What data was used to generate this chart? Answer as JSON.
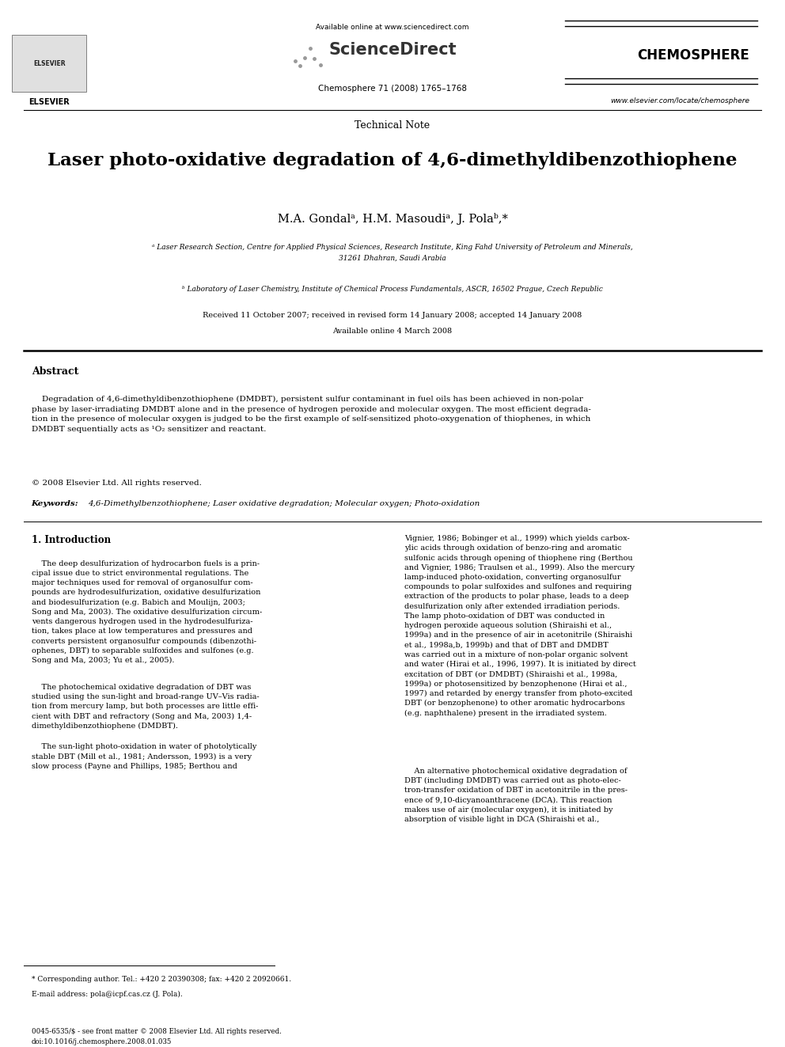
{
  "page_width": 9.92,
  "page_height": 13.23,
  "background": "#ffffff",
  "available_online": "Available online at www.sciencedirect.com",
  "sciencedirect": "ScienceDirect",
  "journal_name": "CHEMOSPHERE",
  "journal_info": "Chemosphere 71 (2008) 1765–1768",
  "website": "www.elsevier.com/locate/chemosphere",
  "article_type": "Technical Note",
  "title": "Laser photo-oxidative degradation of 4,6-dimethyldibenzothiophene",
  "authors": "M.A. Gondalᵃ, H.M. Masoudiᵃ, J. Polaᵇ,*",
  "affiliation_a": "ᵃ Laser Research Section, Centre for Applied Physical Sciences, Research Institute, King Fahd University of Petroleum and Minerals,\n31261 Dhahran, Saudi Arabia",
  "affiliation_b": "ᵇ Laboratory of Laser Chemistry, Institute of Chemical Process Fundamentals, ASCR, 16502 Prague, Czech Republic",
  "received": "Received 11 October 2007; received in revised form 14 January 2008; accepted 14 January 2008",
  "available_online_date": "Available online 4 March 2008",
  "abstract_title": "Abstract",
  "abstract_text": "    Degradation of 4,6-dimethyldibenzothiophene (DMDBT), persistent sulfur contaminant in fuel oils has been achieved in non-polar\nphase by laser-irradiating DMDBT alone and in the presence of hydrogen peroxide and molecular oxygen. The most efficient degrada-\ntion in the presence of molecular oxygen is judged to be the first example of self-sensitized photo-oxygenation of thiophenes, in which\nDMDBT sequentially acts as ¹O₂ sensitizer and reactant.",
  "copyright": "© 2008 Elsevier Ltd. All rights reserved.",
  "keywords_label": "Keywords:",
  "keywords": "4,6-Dimethylbenzothiophene; Laser oxidative degradation; Molecular oxygen; Photo-oxidation",
  "section1_title": "1. Introduction",
  "col1_para1": "    The deep desulfurization of hydrocarbon fuels is a prin-\ncipal issue due to strict environmental regulations. The\nmajor techniques used for removal of organosulfur com-\npounds are hydrodesulfurization, oxidative desulfurization\nand biodesulfurization (e.g. Babich and Moulijn, 2003;\nSong and Ma, 2003). The oxidative desulfurization circum-\nvents dangerous hydrogen used in the hydrodesulfuriza-\ntion, takes place at low temperatures and pressures and\nconverts persistent organosulfur compounds (dibenzothi-\nophenes, DBT) to separable sulfoxides and sulfones (e.g.\nSong and Ma, 2003; Yu et al., 2005).",
  "col1_para2": "    The photochemical oxidative degradation of DBT was\nstudied using the sun-light and broad-range UV–Vis radia-\ntion from mercury lamp, but both processes are little effi-\ncient with DBT and refractory (Song and Ma, 2003) 1,4-\ndimethyldibenzothiophene (DMDBT).",
  "col1_para3": "    The sun-light photo-oxidation in water of photolytically\nstable DBT (Mill et al., 1981; Andersson, 1993) is a very\nslow process (Payne and Phillips, 1985; Berthou and",
  "col2_para1": "Vignier, 1986; Bobinger et al., 1999) which yields carbox-\nylic acids through oxidation of benzo-ring and aromatic\nsulfonic acids through opening of thiophene ring (Berthou\nand Vignier, 1986; Traulsen et al., 1999). Also the mercury\nlamp-induced photo-oxidation, converting organosulfur\ncompounds to polar sulfoxides and sulfones and requiring\nextraction of the products to polar phase, leads to a deep\ndesulfurization only after extended irradiation periods.\nThe lamp photo-oxidation of DBT was conducted in\nhydrogen peroxide aqueous solution (Shiraishi et al.,\n1999a) and in the presence of air in acetonitrile (Shiraishi\net al., 1998a,b, 1999b) and that of DBT and DMDBT\nwas carried out in a mixture of non-polar organic solvent\nand water (Hirai et al., 1996, 1997). It is initiated by direct\nexcitation of DBT (or DMDBT) (Shiraishi et al., 1998a,\n1999a) or photosensitized by benzophenone (Hirai et al.,\n1997) and retarded by energy transfer from photo-excited\nDBT (or benzophenone) to other aromatic hydrocarbons\n(e.g. naphthalene) present in the irradiated system.",
  "col2_para2": "    An alternative photochemical oxidative degradation of\nDBT (including DMDBT) was carried out as photo-elec-\ntron-transfer oxidation of DBT in acetonitrile in the pres-\nence of 9,10-dicyanoanthracene (DCA). This reaction\nmakes use of air (molecular oxygen), it is initiated by\nabsorption of visible light in DCA (Shiraishi et al.,",
  "footnote_star": "* Corresponding author. Tel.: +420 2 20390308; fax: +420 2 20920661.",
  "footnote_email": "E-mail address: pola@icpf.cas.cz (J. Pola).",
  "footer_left": "0045-6535/$ - see front matter © 2008 Elsevier Ltd. All rights reserved.\ndoi:10.1016/j.chemosphere.2008.01.035"
}
